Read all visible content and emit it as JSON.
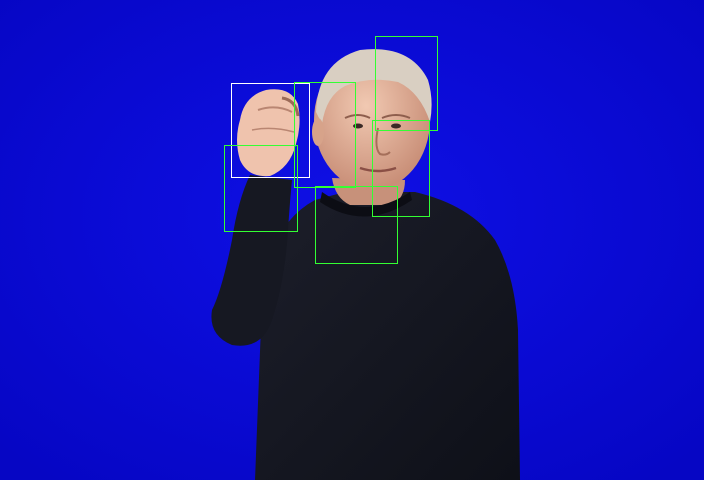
{
  "scene": {
    "background_color": "#0a0ad8",
    "subject": "person-signing",
    "sweater_color": "#13151f",
    "skin_color": "#e8b8a0",
    "hair_color": "#d9cfc2"
  },
  "overlay": {
    "box_colors": {
      "primary": "#ffffff",
      "secondary": "#33ff33"
    },
    "box_count": 7
  }
}
